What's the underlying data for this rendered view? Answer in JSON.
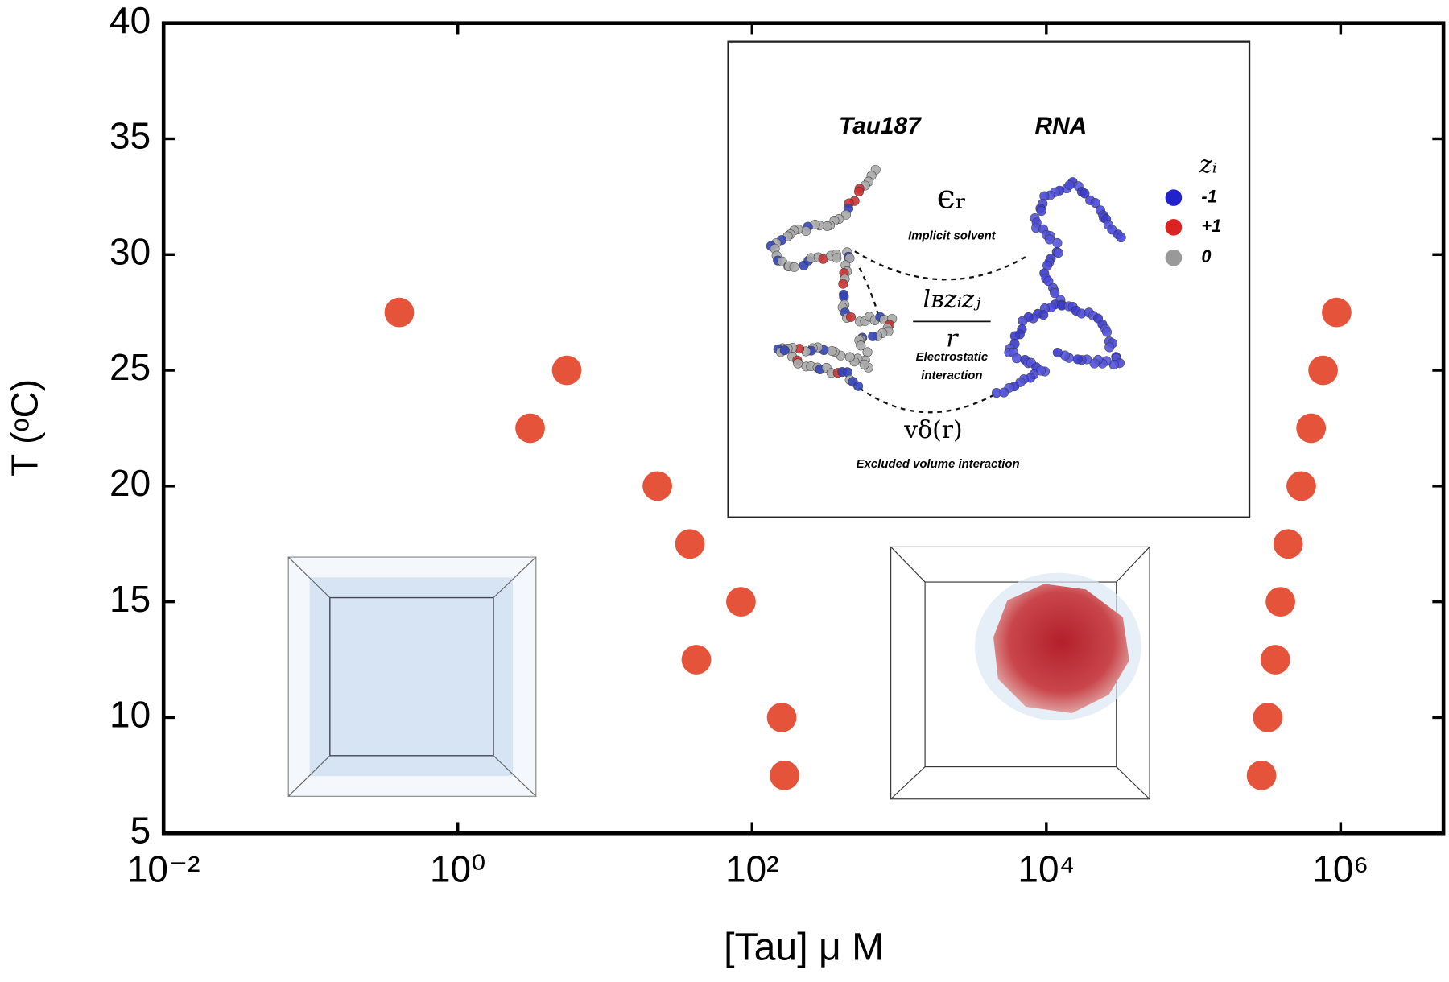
{
  "chart_data": {
    "type": "scatter",
    "x_label": "[Tau] μ M",
    "y_label": "T (ᵒC)",
    "x": [
      0.4,
      5.5,
      3.1,
      22.7,
      37.8,
      84,
      41.8,
      159,
      166,
      940000,
      760000,
      630000,
      540000,
      440000,
      390000,
      360000,
      320000,
      290000
    ],
    "values": [
      27.5,
      25,
      22.5,
      20,
      17.5,
      15,
      12.5,
      10,
      7.5,
      27.5,
      25,
      22.5,
      20,
      17.5,
      15,
      12.5,
      10,
      7.5
    ],
    "color": "#e5533a",
    "xscale": "log",
    "grid": false,
    "xlim": [
      0.01,
      5000000
    ],
    "ylim": [
      5,
      40
    ],
    "xticks": [
      {
        "value": 0.01,
        "label": "10⁻²"
      },
      {
        "value": 1,
        "label": "10⁰"
      },
      {
        "value": 100,
        "label": "10²"
      },
      {
        "value": 10000,
        "label": "10⁴"
      },
      {
        "value": 1000000,
        "label": "10⁶"
      }
    ],
    "yticks": [
      5,
      10,
      15,
      20,
      25,
      30,
      35,
      40
    ],
    "inset": {
      "protein": "Tau187",
      "rna": "RNA",
      "charge_symbol": "zᵢ",
      "charge_neg": "-1",
      "charge_pos": "+1",
      "charge_zero": "0",
      "dielectric": "ϵᵣ",
      "dielectric_note": "Implicit solvent",
      "coulomb_numerator": "lʙzᵢzⱼ",
      "coulomb_denominator": "r",
      "coulomb_note_1": "Electrostatic",
      "coulomb_note_2": "interaction",
      "excluded": "vδ(r)",
      "excluded_note": "Excluded volume interaction"
    }
  }
}
